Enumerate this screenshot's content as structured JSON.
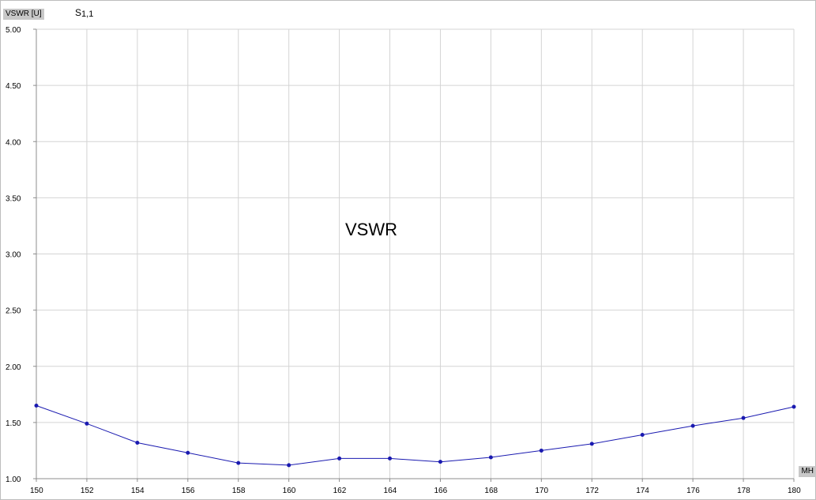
{
  "window": {
    "y_axis_label": "VSWR [U]",
    "trace_name_main": "S",
    "trace_name_sub": "1,1",
    "x_unit_label": "MH"
  },
  "colors": {
    "trace": "#1a1ab0",
    "grid": "#d4d4d4",
    "axis": "#8c8c8c"
  },
  "chart_data": {
    "type": "line",
    "title": "VSWR",
    "xlabel": "MH",
    "ylabel": "VSWR [U]",
    "xlim": [
      150,
      180
    ],
    "ylim": [
      1.0,
      5.0
    ],
    "grid": true,
    "x_ticks": [
      150,
      152,
      154,
      156,
      158,
      160,
      162,
      164,
      166,
      168,
      170,
      172,
      174,
      176,
      178,
      180
    ],
    "x_tick_labels": [
      "150",
      "152",
      "154",
      "156",
      "158",
      "160",
      "162",
      "164",
      "166",
      "168",
      "170",
      "172",
      "174",
      "176",
      "178",
      "180"
    ],
    "y_ticks": [
      1.0,
      1.5,
      2.0,
      2.5,
      3.0,
      3.5,
      4.0,
      4.5,
      5.0
    ],
    "y_tick_labels": [
      "1.00",
      "1.50",
      "2.00",
      "2.50",
      "3.00",
      "3.50",
      "4.00",
      "4.50",
      "5.00"
    ],
    "series": [
      {
        "name": "S1,1",
        "x": [
          150,
          152,
          154,
          156,
          158,
          160,
          162,
          164,
          166,
          168,
          170,
          172,
          174,
          176,
          178,
          180
        ],
        "values": [
          1.65,
          1.49,
          1.32,
          1.23,
          1.14,
          1.12,
          1.18,
          1.18,
          1.15,
          1.19,
          1.25,
          1.31,
          1.39,
          1.47,
          1.54,
          1.64
        ]
      }
    ]
  }
}
